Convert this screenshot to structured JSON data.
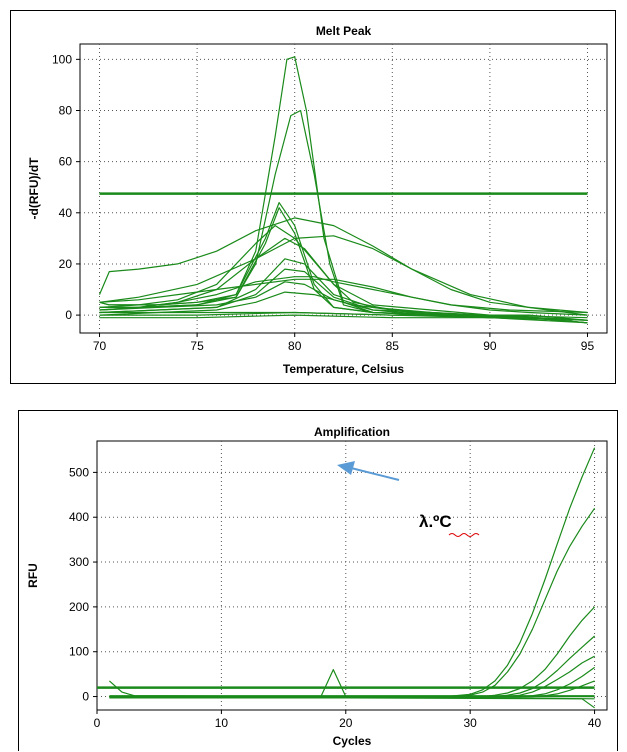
{
  "chart_data": [
    {
      "type": "line",
      "title": "Melt Peak",
      "xlabel": "Temperature, Celsius",
      "ylabel": "-d(RFU)/dT",
      "xlim": [
        69,
        96
      ],
      "ylim": [
        -7,
        106
      ],
      "xticks": [
        70,
        75,
        80,
        85,
        90,
        95
      ],
      "yticks": [
        0,
        20,
        40,
        60,
        80,
        100
      ],
      "grid": true,
      "color": "#1a8a1a",
      "threshold": 47.5,
      "series": [
        {
          "x": [
            70,
            70.5,
            73,
            75,
            77,
            78,
            79,
            79.6,
            80,
            80.6,
            81.5,
            82.5,
            84,
            87,
            90,
            95
          ],
          "y": [
            5,
            4,
            4,
            5,
            8,
            25,
            70,
            100,
            101,
            80,
            30,
            5,
            1,
            0,
            -1,
            -2
          ]
        },
        {
          "x": [
            70,
            70.5,
            73,
            75,
            77,
            78,
            79,
            79.8,
            80.3,
            81,
            81.8,
            82.5,
            84,
            87,
            90,
            95
          ],
          "y": [
            5,
            4,
            4,
            5,
            7,
            20,
            55,
            78,
            80,
            55,
            20,
            4,
            1,
            0,
            -1,
            -2
          ]
        },
        {
          "x": [
            70,
            72,
            75,
            77,
            78.5,
            79.2,
            80,
            81,
            82,
            84,
            88,
            92,
            95
          ],
          "y": [
            3,
            3,
            4,
            8,
            30,
            44,
            35,
            12,
            3,
            1,
            0,
            -1,
            -3
          ]
        },
        {
          "x": [
            70,
            72,
            75,
            77,
            78.5,
            79.2,
            80,
            81,
            82,
            84,
            88,
            92,
            95
          ],
          "y": [
            3,
            3,
            4,
            7,
            28,
            42,
            32,
            10,
            3,
            1,
            0,
            -1,
            -3
          ]
        },
        {
          "x": [
            70,
            72,
            74,
            76,
            78,
            79.5,
            80.5,
            82,
            83,
            85,
            88,
            92,
            95
          ],
          "y": [
            2,
            3,
            5,
            10,
            22,
            30,
            26,
            12,
            5,
            2,
            0,
            -1,
            -3
          ]
        },
        {
          "x": [
            70,
            72,
            74,
            76,
            78,
            79,
            80,
            82,
            84,
            87,
            90,
            95
          ],
          "y": [
            3,
            4,
            6,
            12,
            28,
            35,
            30,
            12,
            4,
            2,
            0,
            -2
          ]
        },
        {
          "x": [
            70,
            70.5,
            72,
            74,
            76,
            78,
            80,
            82,
            84,
            86,
            88,
            90,
            93,
            95
          ],
          "y": [
            8,
            17,
            18,
            20,
            25,
            33,
            38,
            35,
            27,
            18,
            10,
            5,
            2,
            0
          ]
        },
        {
          "x": [
            70,
            72,
            75,
            78,
            80,
            82,
            84,
            86,
            89,
            92,
            95
          ],
          "y": [
            5,
            7,
            12,
            22,
            30,
            31,
            26,
            18,
            8,
            3,
            1
          ]
        },
        {
          "x": [
            70,
            72,
            74,
            76,
            78,
            80,
            81,
            82,
            84,
            86,
            88,
            90,
            92,
            95
          ],
          "y": [
            2,
            3,
            5,
            8,
            13,
            15,
            15,
            13,
            10,
            7,
            4,
            2,
            1,
            0
          ]
        },
        {
          "x": [
            70,
            72,
            74,
            76,
            78,
            80,
            82,
            84,
            86,
            88,
            91,
            95
          ],
          "y": [
            5,
            6,
            8,
            10,
            12,
            14,
            14,
            11,
            7,
            4,
            2,
            1
          ]
        },
        {
          "x": [
            70,
            73,
            76,
            78,
            79.5,
            80.5,
            82,
            84,
            87,
            92,
            95
          ],
          "y": [
            1,
            2,
            3,
            10,
            22,
            20,
            8,
            3,
            1,
            -1,
            -3
          ]
        },
        {
          "x": [
            70,
            73,
            76,
            78,
            79.5,
            80.5,
            82,
            84,
            87,
            92,
            95
          ],
          "y": [
            1,
            2,
            3,
            8,
            18,
            17,
            7,
            2,
            1,
            -1,
            -3
          ]
        },
        {
          "x": [
            70,
            73,
            76,
            78,
            79.5,
            80.5,
            82,
            84,
            87,
            92,
            95
          ],
          "y": [
            2,
            3,
            4,
            7,
            13,
            12,
            6,
            2,
            0,
            -1,
            -2
          ]
        },
        {
          "x": [
            70,
            73,
            76,
            78,
            79.5,
            81,
            83,
            86,
            89,
            92,
            95
          ],
          "y": [
            0,
            1,
            2,
            5,
            9,
            8,
            4,
            1,
            0,
            0,
            -2
          ]
        },
        {
          "x": [
            70,
            75,
            80,
            85,
            90,
            95
          ],
          "y": [
            1,
            1,
            1,
            0,
            0,
            -1
          ]
        },
        {
          "x": [
            70,
            75,
            80,
            85,
            90,
            95
          ],
          "y": [
            0,
            0,
            1,
            0,
            -1,
            -2
          ]
        },
        {
          "x": [
            70,
            75,
            80,
            85,
            90,
            95
          ],
          "y": [
            -1,
            -1,
            0,
            -1,
            -1,
            -3
          ]
        }
      ]
    },
    {
      "type": "line",
      "title": "Amplification",
      "xlabel": "Cycles",
      "ylabel": "RFU",
      "xlim": [
        0,
        41
      ],
      "ylim": [
        -30,
        570
      ],
      "xticks": [
        0,
        10,
        20,
        30,
        40
      ],
      "yticks": [
        0,
        100,
        200,
        300,
        400,
        500
      ],
      "grid": true,
      "color": "#1a8a1a",
      "annotation": "λ.ºC",
      "threshold": 20,
      "series": [
        {
          "x": [
            1,
            28,
            30,
            31,
            32,
            33,
            34,
            35,
            36,
            37,
            38,
            39,
            40
          ],
          "y": [
            0,
            0,
            5,
            15,
            35,
            70,
            120,
            185,
            260,
            340,
            420,
            490,
            555
          ]
        },
        {
          "x": [
            1,
            28,
            30,
            31,
            32,
            33,
            34,
            35,
            36,
            37,
            38,
            39,
            40
          ],
          "y": [
            0,
            0,
            3,
            10,
            25,
            55,
            95,
            150,
            215,
            280,
            335,
            380,
            420
          ]
        },
        {
          "x": [
            1,
            31,
            32,
            33,
            34,
            35,
            36,
            37,
            38,
            39,
            40
          ],
          "y": [
            0,
            0,
            3,
            8,
            18,
            35,
            60,
            95,
            135,
            170,
            200
          ]
        },
        {
          "x": [
            1,
            32,
            33,
            34,
            35,
            36,
            37,
            38,
            39,
            40
          ],
          "y": [
            0,
            0,
            3,
            8,
            18,
            35,
            58,
            85,
            110,
            135
          ]
        },
        {
          "x": [
            1,
            33,
            34,
            35,
            36,
            37,
            38,
            39,
            40
          ],
          "y": [
            0,
            0,
            3,
            10,
            22,
            38,
            55,
            75,
            90
          ]
        },
        {
          "x": [
            1,
            34,
            35,
            36,
            37,
            38,
            39,
            40
          ],
          "y": [
            0,
            0,
            2,
            6,
            15,
            28,
            45,
            65
          ]
        },
        {
          "x": [
            1,
            35,
            36,
            37,
            38,
            39,
            40
          ],
          "y": [
            0,
            0,
            2,
            6,
            14,
            24,
            35
          ]
        },
        {
          "x": [
            1,
            18,
            19,
            20,
            40
          ],
          "y": [
            0,
            0,
            60,
            0,
            0
          ]
        },
        {
          "x": [
            1,
            2,
            3,
            20,
            40
          ],
          "y": [
            35,
            10,
            2,
            0,
            -5
          ]
        },
        {
          "x": [
            1,
            20,
            39,
            40
          ],
          "y": [
            -3,
            -3,
            -5,
            -25
          ]
        },
        {
          "x": [
            1,
            40
          ],
          "y": [
            2,
            2
          ]
        }
      ]
    }
  ]
}
